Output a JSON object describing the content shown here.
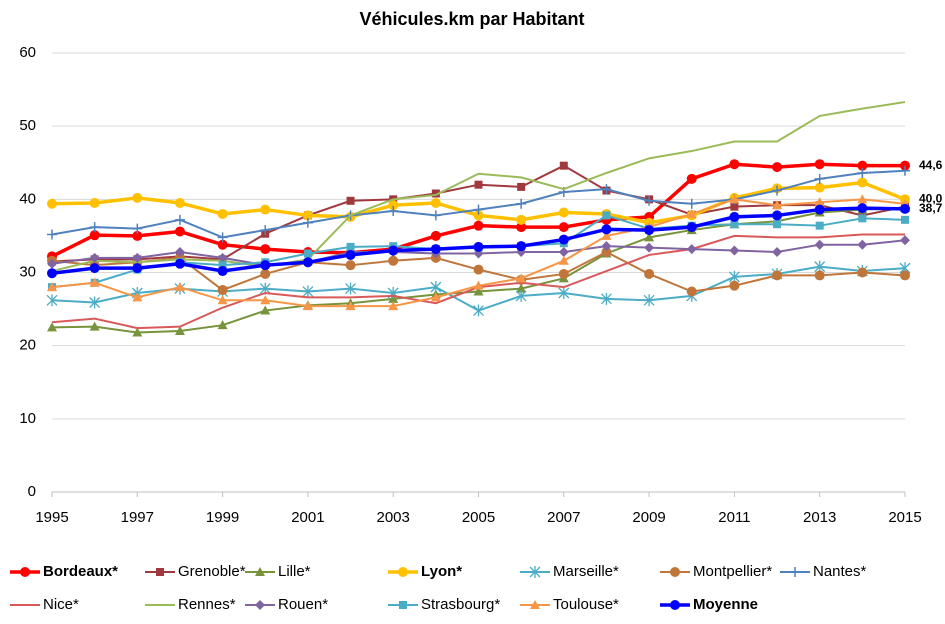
{
  "chart_data": {
    "type": "line",
    "title": "Véhicules.km par Habitant",
    "x": [
      1995,
      1996,
      1997,
      1998,
      1999,
      2000,
      2001,
      2002,
      2003,
      2004,
      2005,
      2006,
      2007,
      2008,
      2009,
      2010,
      2011,
      2012,
      2013,
      2014,
      2015
    ],
    "xlim": [
      1995,
      2015
    ],
    "xticks": [
      1995,
      1997,
      1999,
      2001,
      2003,
      2005,
      2007,
      2009,
      2011,
      2013,
      2015
    ],
    "ylim": [
      0,
      60
    ],
    "yticks": [
      0,
      10,
      20,
      30,
      40,
      50,
      60
    ],
    "grid": true,
    "series": [
      {
        "name": "Bordeaux*",
        "color": "#ff0000",
        "marker": "circle",
        "width": 3.5,
        "bold": true,
        "label_color": "#ff0000",
        "values": [
          32.2,
          35.1,
          35.0,
          35.6,
          33.8,
          33.2,
          32.8,
          32.7,
          33.2,
          35.0,
          36.4,
          36.2,
          36.2,
          37.2,
          37.6,
          42.8,
          44.8,
          44.4,
          44.8,
          44.6,
          44.6
        ],
        "value_labels": [
          null,
          null,
          null,
          null,
          null,
          null,
          null,
          null,
          null,
          null,
          null,
          null,
          null,
          null,
          null,
          null,
          null,
          null,
          null,
          null,
          "44,6"
        ]
      },
      {
        "name": "Grenoble*",
        "color": "#a0393e",
        "marker": "square",
        "width": 2,
        "values": [
          31.5,
          31.8,
          31.8,
          32.2,
          31.8,
          35.3,
          37.8,
          39.8,
          40.0,
          40.8,
          42.0,
          41.7,
          44.6,
          41.2,
          40.0,
          37.9,
          39.0,
          39.2,
          39.2,
          37.8,
          39.0
        ]
      },
      {
        "name": "Lille*",
        "color": "#77933c",
        "marker": "triangle",
        "width": 2,
        "values": [
          22.5,
          22.6,
          21.8,
          22.0,
          22.8,
          24.8,
          25.5,
          25.8,
          26.4,
          27.0,
          27.4,
          27.8,
          29.2,
          32.6,
          34.8,
          35.8,
          36.6,
          37.0,
          38.2,
          38.6,
          38.8
        ]
      },
      {
        "name": "Lyon*",
        "color": "#ffc000",
        "marker": "circle",
        "width": 3.5,
        "bold": true,
        "label_color": "#000000",
        "values": [
          39.4,
          39.5,
          40.2,
          39.5,
          38.0,
          38.6,
          37.8,
          37.6,
          39.2,
          39.5,
          37.8,
          37.2,
          38.2,
          38.0,
          36.8,
          37.8,
          40.2,
          41.5,
          41.6,
          42.3,
          40.0
        ],
        "value_labels": [
          null,
          null,
          null,
          null,
          null,
          null,
          null,
          null,
          null,
          null,
          null,
          null,
          null,
          null,
          null,
          null,
          null,
          null,
          null,
          null,
          "40,0"
        ]
      },
      {
        "name": "Marseille*",
        "color": "#4bacc6",
        "marker": "star",
        "width": 2,
        "values": [
          26.2,
          25.9,
          27.2,
          27.8,
          27.4,
          27.8,
          27.4,
          27.8,
          27.2,
          28.0,
          24.8,
          26.8,
          27.2,
          26.4,
          26.2,
          26.8,
          29.4,
          29.8,
          30.8,
          30.2,
          30.6
        ]
      },
      {
        "name": "Montpellier*",
        "color": "#c0763a",
        "marker": "circle",
        "width": 2,
        "values": [
          31.6,
          31.0,
          31.4,
          32.0,
          27.6,
          29.8,
          31.4,
          31.0,
          31.6,
          32.0,
          30.4,
          29.0,
          29.8,
          32.8,
          29.8,
          27.4,
          28.2,
          29.6,
          29.6,
          30.0,
          29.6
        ]
      },
      {
        "name": "Nantes*",
        "color": "#4f81bd",
        "marker": "plus",
        "width": 2,
        "values": [
          35.2,
          36.2,
          36.0,
          37.2,
          34.8,
          35.8,
          36.8,
          37.8,
          38.4,
          37.8,
          38.6,
          39.4,
          41.0,
          41.4,
          39.8,
          39.4,
          40.0,
          41.2,
          42.8,
          43.6,
          43.9
        ]
      },
      {
        "name": "Nice*",
        "color": "#d9595a",
        "marker": "none",
        "width": 2,
        "values": [
          23.2,
          23.7,
          22.4,
          22.6,
          25.2,
          27.2,
          26.6,
          26.6,
          26.8,
          25.8,
          28.0,
          28.6,
          28.0,
          30.2,
          32.4,
          33.2,
          35.0,
          34.8,
          34.8,
          35.2,
          35.2
        ]
      },
      {
        "name": "Rennes*",
        "color": "#9bbb59",
        "marker": "none",
        "width": 2,
        "values": [
          30.2,
          31.6,
          31.4,
          31.8,
          31.6,
          30.8,
          31.8,
          37.8,
          40.0,
          40.6,
          43.5,
          43.0,
          41.4,
          43.6,
          45.6,
          46.6,
          47.9,
          47.9,
          51.4,
          52.4,
          53.3
        ]
      },
      {
        "name": "Rouen*",
        "color": "#8064a2",
        "marker": "diamond",
        "width": 2,
        "values": [
          31.2,
          32.0,
          32.0,
          32.8,
          32.0,
          31.0,
          31.4,
          32.8,
          32.8,
          32.6,
          32.6,
          32.8,
          32.8,
          33.6,
          33.4,
          33.2,
          33.0,
          32.8,
          33.8,
          33.8,
          34.4
        ]
      },
      {
        "name": "Strasbourg*",
        "color": "#4bacc6",
        "marker": "square",
        "width": 2,
        "values": [
          28.0,
          28.6,
          30.4,
          31.4,
          31.0,
          31.4,
          32.6,
          33.5,
          33.6,
          33.2,
          33.4,
          33.6,
          34.0,
          37.8,
          36.0,
          36.4,
          36.6,
          36.6,
          36.4,
          37.4,
          37.2
        ]
      },
      {
        "name": "Toulouse*",
        "color": "#f79646",
        "marker": "triangle",
        "width": 2,
        "values": [
          28.0,
          28.6,
          26.6,
          28.0,
          26.2,
          26.2,
          25.4,
          25.4,
          25.4,
          26.6,
          28.2,
          29.2,
          31.6,
          35.0,
          36.2,
          38.0,
          40.0,
          39.2,
          39.6,
          40.0,
          39.4
        ]
      },
      {
        "name": "Moyenne",
        "color": "#0000ff",
        "marker": "circle",
        "width": 3.5,
        "bold": true,
        "label_color": "#0000ff",
        "values": [
          29.9,
          30.6,
          30.6,
          31.2,
          30.2,
          31.0,
          31.4,
          32.4,
          33.0,
          33.2,
          33.5,
          33.6,
          34.5,
          35.9,
          35.8,
          36.2,
          37.6,
          37.8,
          38.6,
          38.8,
          38.7
        ],
        "value_labels": [
          null,
          null,
          null,
          null,
          null,
          null,
          null,
          null,
          null,
          null,
          null,
          null,
          null,
          null,
          null,
          null,
          null,
          null,
          null,
          null,
          "38,7"
        ]
      }
    ]
  }
}
